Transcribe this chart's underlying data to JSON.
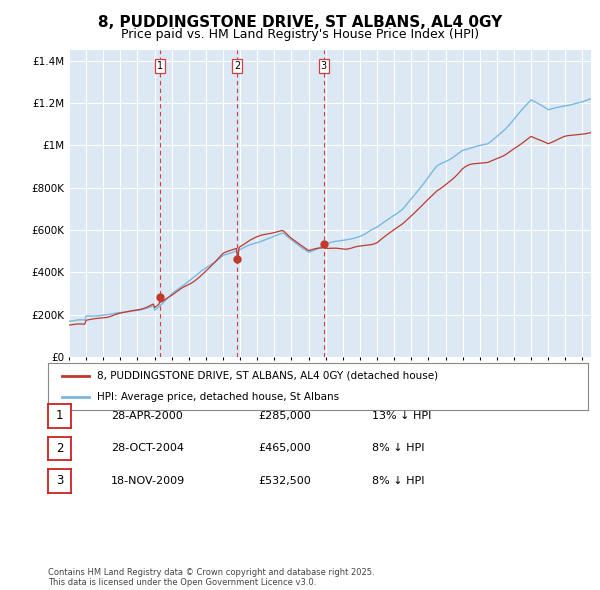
{
  "title": "8, PUDDINGSTONE DRIVE, ST ALBANS, AL4 0GY",
  "subtitle": "Price paid vs. HM Land Registry's House Price Index (HPI)",
  "title_fontsize": 11,
  "subtitle_fontsize": 9,
  "bg_color": "#dce9f5",
  "line_color_hpi": "#7ab8e0",
  "line_color_paid": "#c0392b",
  "ylim": [
    0,
    1450000
  ],
  "yticks": [
    0,
    200000,
    400000,
    600000,
    800000,
    1000000,
    1200000,
    1400000
  ],
  "ytick_labels": [
    "£0",
    "£200K",
    "£400K",
    "£600K",
    "£800K",
    "£1M",
    "£1.2M",
    "£1.4M"
  ],
  "xlim": [
    1995,
    2025.5
  ],
  "vline_years": [
    2000.32,
    2004.83,
    2009.89
  ],
  "vline_labels": [
    "1",
    "2",
    "3"
  ],
  "sale_prices": [
    285000,
    465000,
    532500
  ],
  "legend_entries": [
    "8, PUDDINGSTONE DRIVE, ST ALBANS, AL4 0GY (detached house)",
    "HPI: Average price, detached house, St Albans"
  ],
  "table_rows": [
    {
      "num": "1",
      "date": "28-APR-2000",
      "price": "£285,000",
      "hpi": "13% ↓ HPI"
    },
    {
      "num": "2",
      "date": "28-OCT-2004",
      "price": "£465,000",
      "hpi": "8% ↓ HPI"
    },
    {
      "num": "3",
      "date": "18-NOV-2009",
      "price": "£532,500",
      "hpi": "8% ↓ HPI"
    }
  ],
  "footer": "Contains HM Land Registry data © Crown copyright and database right 2025.\nThis data is licensed under the Open Government Licence v3.0.",
  "grid_color": "#ffffff",
  "vline_color": "#d04040"
}
